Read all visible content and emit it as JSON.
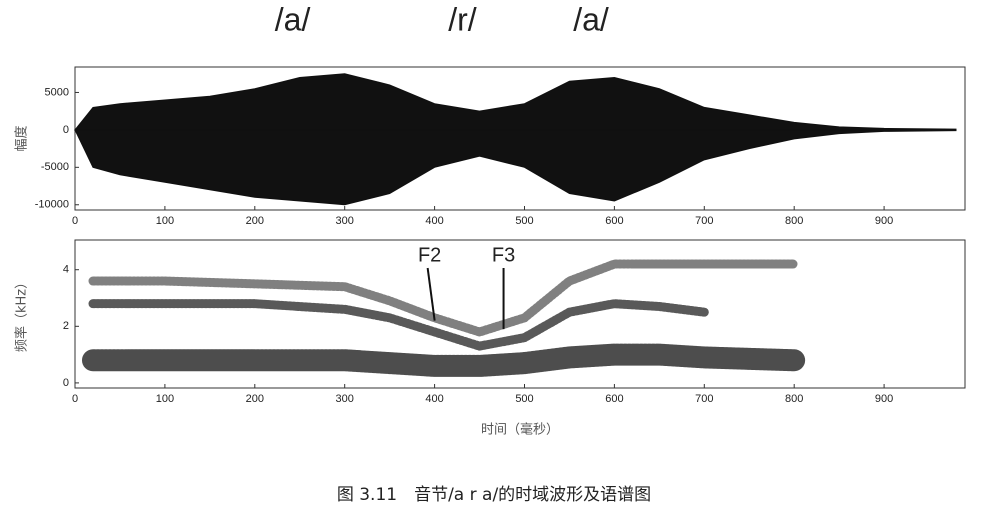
{
  "caption": "图 3.11　音节/a r a/的时域波形及语谱图",
  "chart_data": [
    {
      "type": "area",
      "ylabel": "幅度",
      "annotations": [
        {
          "text": "/a/",
          "x": 242
        },
        {
          "text": "/r/",
          "x": 431
        },
        {
          "text": "/a/",
          "x": 574
        }
      ],
      "x": [
        0,
        20,
        50,
        100,
        150,
        200,
        250,
        300,
        350,
        400,
        450,
        500,
        550,
        600,
        650,
        700,
        750,
        800,
        850,
        900,
        980
      ],
      "series": [
        {
          "color": "#111111",
          "values": [
            0,
            3000,
            3500,
            4000,
            4500,
            5500,
            7000,
            7500,
            6000,
            3500,
            2500,
            3500,
            6500,
            7000,
            5500,
            3000,
            2000,
            1000,
            400,
            200,
            100
          ]
        },
        {
          "color": "#111111",
          "values": [
            0,
            -5000,
            -6000,
            -7000,
            -8000,
            -9000,
            -9500,
            -10000,
            -8500,
            -5000,
            -3500,
            -5000,
            -8500,
            -9500,
            -7000,
            -4000,
            -2500,
            -1200,
            -500,
            -200,
            -100
          ]
        }
      ],
      "xlim": [
        0,
        990
      ],
      "ylim": [
        -10700,
        8400
      ],
      "xticks": [
        0,
        100,
        200,
        300,
        400,
        500,
        600,
        700,
        800,
        900
      ],
      "yticks": [
        -10000,
        -5000,
        0,
        5000
      ]
    },
    {
      "type": "line",
      "xlabel": "时间（毫秒）",
      "ylabel": "频率（kHz）",
      "annotations": [
        {
          "text": "F2",
          "x": 350,
          "y": 2.2
        },
        {
          "text": "F3",
          "x": 440,
          "y": 1.9
        }
      ],
      "x": [
        20,
        100,
        200,
        300,
        350,
        400,
        450,
        500,
        550,
        600,
        650,
        700,
        800
      ],
      "series": [
        {
          "color": "#111111",
          "values": [
            0.8,
            0.8,
            0.8,
            0.8,
            0.7,
            0.6,
            0.6,
            0.7,
            0.9,
            1.0,
            1.0,
            0.9,
            0.8
          ]
        },
        {
          "color": "#222222",
          "values": [
            2.8,
            2.8,
            2.8,
            2.6,
            2.3,
            1.8,
            1.3,
            1.6,
            2.5,
            2.8,
            2.7,
            2.5,
            null
          ]
        },
        {
          "color": "#555555",
          "values": [
            3.6,
            3.6,
            3.5,
            3.4,
            2.9,
            2.3,
            1.8,
            2.3,
            3.6,
            4.2,
            4.2,
            4.2,
            4.2
          ]
        }
      ],
      "xlim": [
        0,
        990
      ],
      "ylim": [
        -0.18,
        5.05
      ],
      "xticks": [
        0,
        100,
        200,
        300,
        400,
        500,
        600,
        700,
        800,
        900
      ],
      "yticks": [
        0,
        2,
        4
      ]
    }
  ]
}
